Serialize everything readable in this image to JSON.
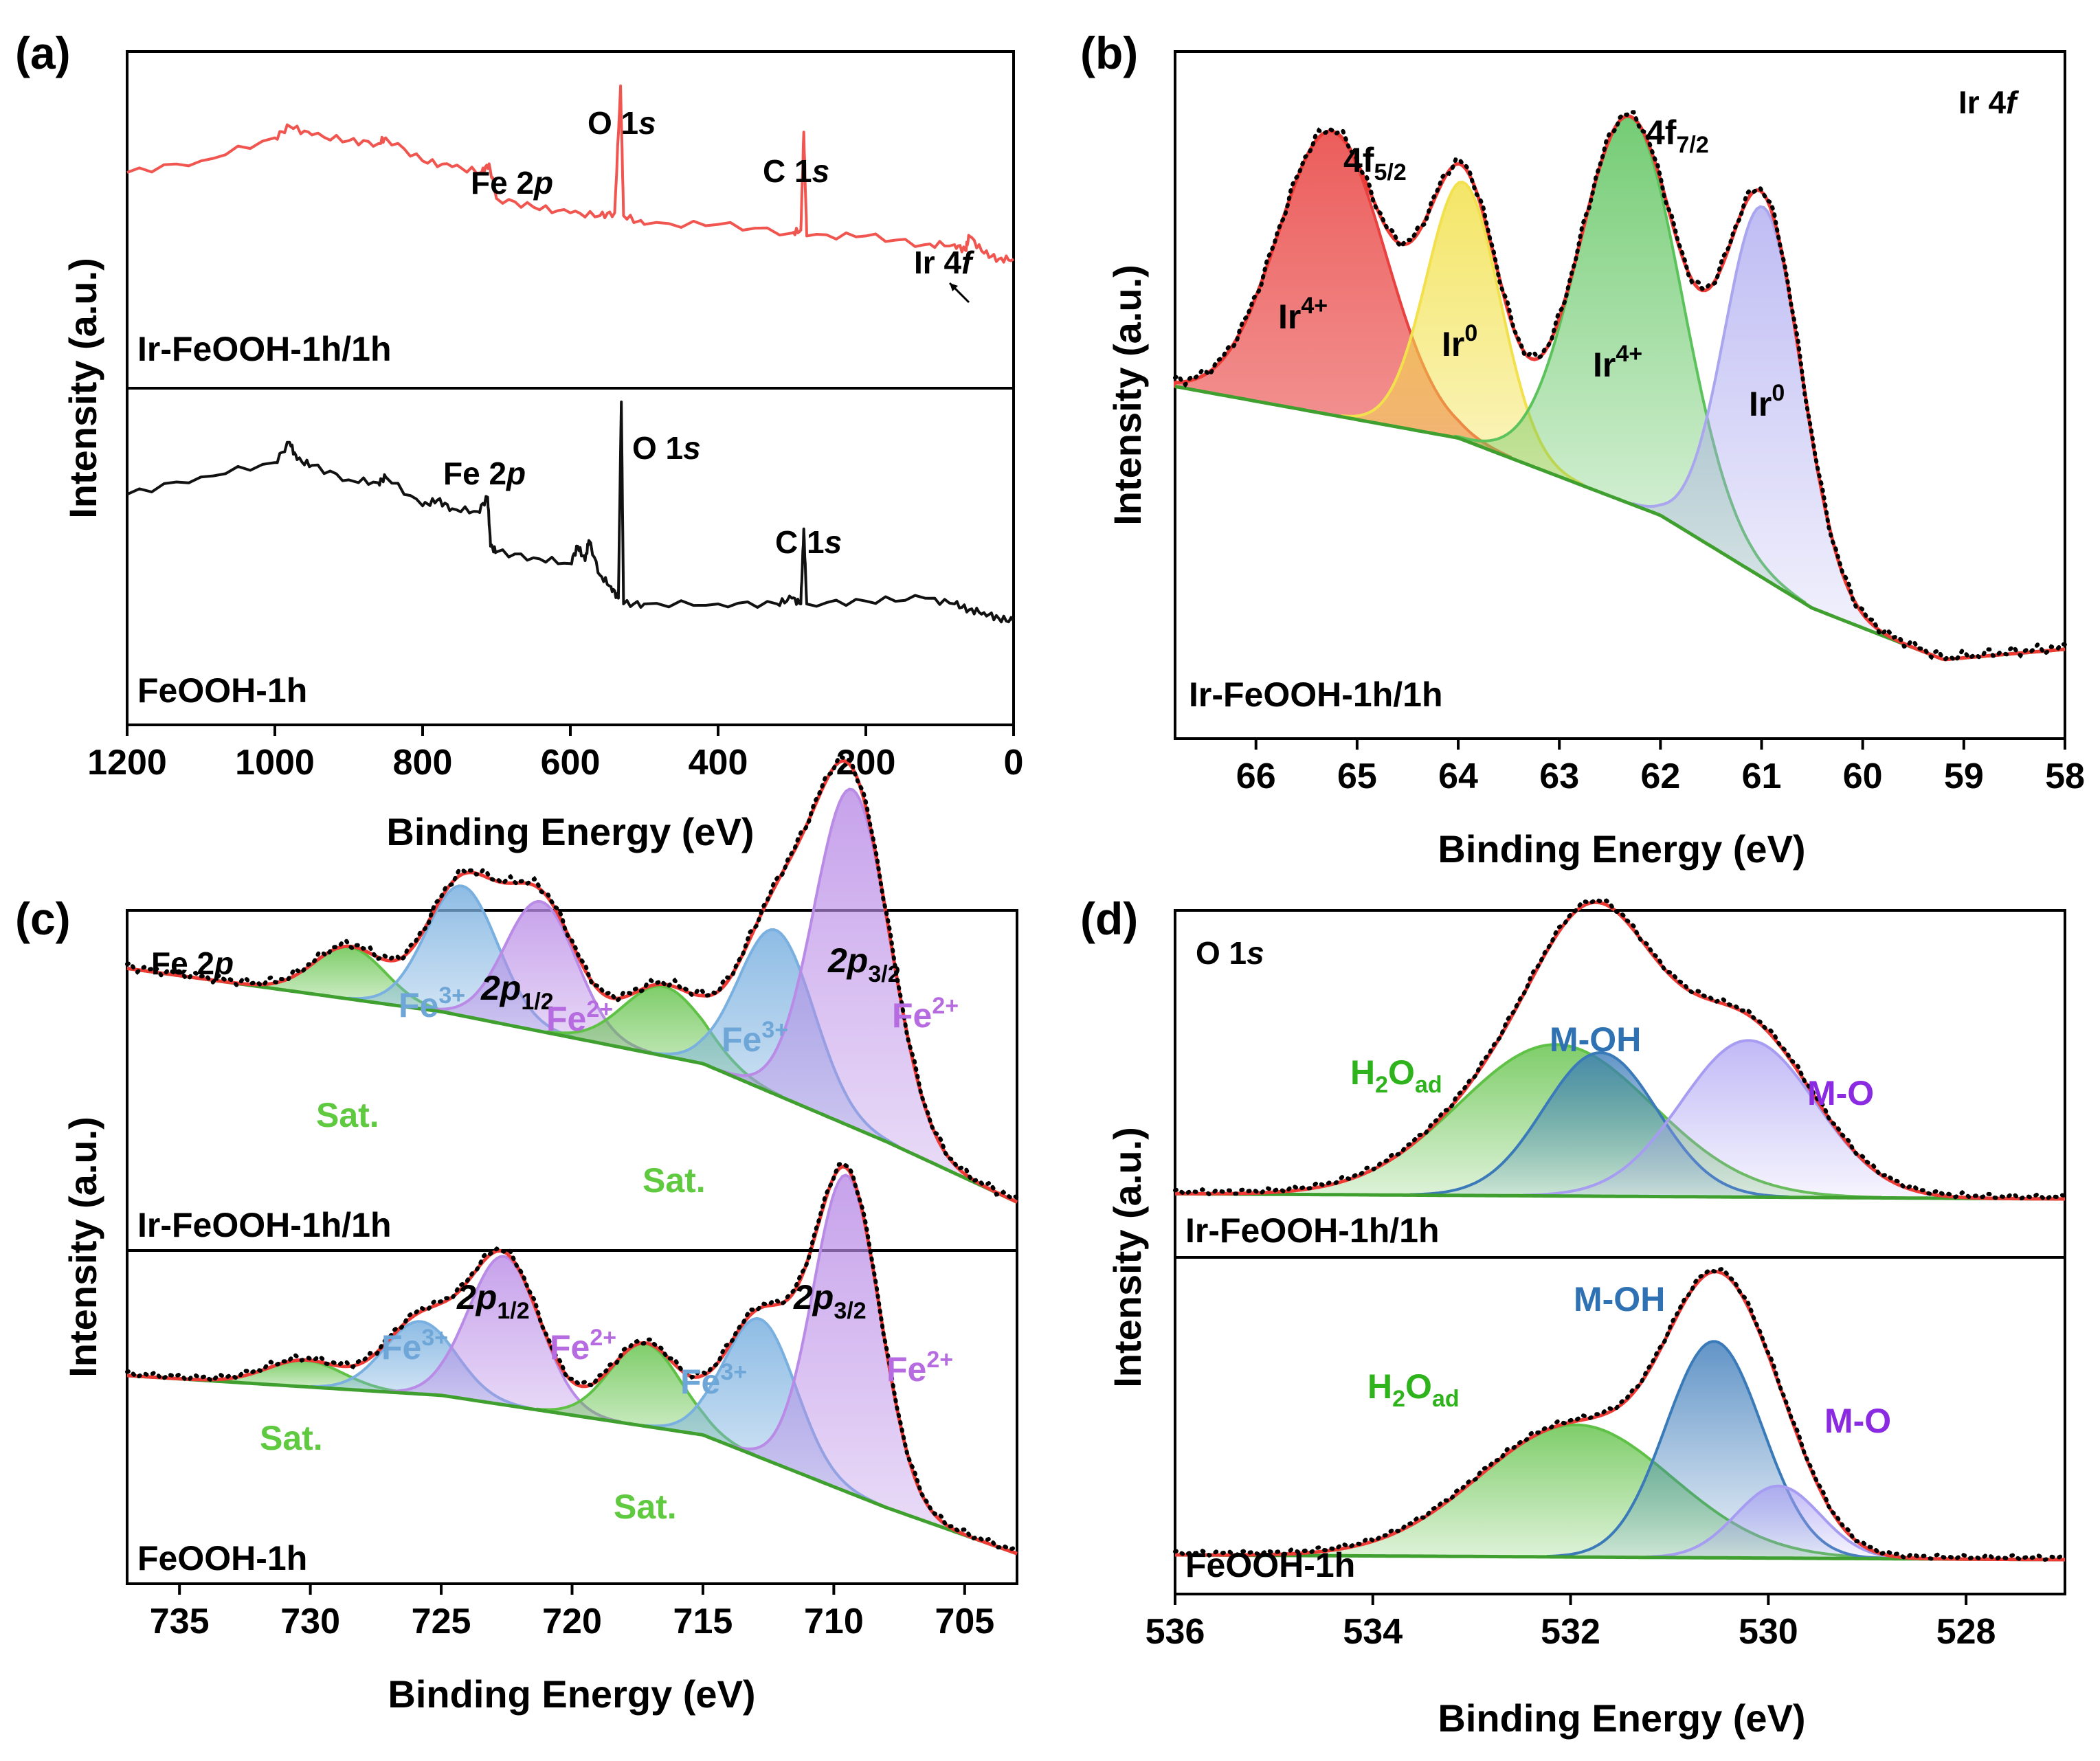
{
  "colors": {
    "ir4": "#e8413f",
    "ir0": "#f2e14c",
    "ir4b": "#5cc35c",
    "ir0b": "#a9a6ef",
    "fe3": "#7ab0e0",
    "fe2": "#b98be6",
    "sat": "#5fc145",
    "h2o": "#5fc145",
    "moh": "#3a7ab9",
    "mo": "#a69cf2",
    "envelope": "#ef3b36",
    "background": "#3f9f2f",
    "fe3_text": "#6fa6d8",
    "fe2_text": "#b66be0",
    "sat_text": "#5fc93f",
    "h2o_text": "#2fb31c",
    "moh_text": "#2f72b3",
    "mo_text": "#8a2be2",
    "survey_top": "#f0554f",
    "survey_bottom": "#111111"
  },
  "chart_data": [
    {
      "id": "a",
      "panel_label": "(a)",
      "type": "line",
      "xlabel": "Binding Energy (eV)",
      "ylabel": "Intensity (a.u.)",
      "xlim": [
        1200,
        0
      ],
      "xticks": [
        1200,
        1000,
        800,
        600,
        400,
        200,
        0
      ],
      "series": [
        {
          "name": "Ir-FeOOH-1h/1h",
          "label": "Ir-FeOOH-1h/1h",
          "color": "#f0554f",
          "x": [
            1200,
            1100,
            1000,
            980,
            950,
            900,
            860,
            850,
            800,
            760,
            720,
            710,
            700,
            650,
            600,
            560,
            540,
            532,
            528,
            500,
            400,
            300,
            288,
            284,
            280,
            200,
            120,
            80,
            65,
            60,
            40,
            20,
            0
          ],
          "y": [
            0.7,
            0.74,
            0.82,
            0.86,
            0.83,
            0.81,
            0.8,
            0.82,
            0.74,
            0.72,
            0.7,
            0.73,
            0.61,
            0.58,
            0.56,
            0.55,
            0.56,
            1.0,
            0.55,
            0.52,
            0.52,
            0.49,
            0.5,
            0.84,
            0.48,
            0.48,
            0.45,
            0.45,
            0.43,
            0.48,
            0.42,
            0.4,
            0.4
          ]
        },
        {
          "name": "FeOOH-1h",
          "label": "FeOOH-1h",
          "color": "#111111",
          "x": [
            1200,
            1100,
            1000,
            980,
            970,
            950,
            900,
            860,
            850,
            800,
            780,
            760,
            725,
            712,
            708,
            700,
            650,
            600,
            590,
            580,
            575,
            560,
            545,
            535,
            531,
            528,
            500,
            400,
            320,
            300,
            288,
            284,
            280,
            200,
            120,
            80,
            60,
            40,
            20,
            0
          ],
          "y": [
            0.68,
            0.74,
            0.79,
            0.86,
            0.8,
            0.78,
            0.73,
            0.72,
            0.74,
            0.64,
            0.66,
            0.63,
            0.62,
            0.67,
            0.5,
            0.48,
            0.46,
            0.44,
            0.5,
            0.45,
            0.52,
            0.4,
            0.36,
            0.32,
            1.0,
            0.3,
            0.3,
            0.3,
            0.3,
            0.32,
            0.3,
            0.56,
            0.3,
            0.31,
            0.32,
            0.3,
            0.28,
            0.27,
            0.25,
            0.24
          ]
        }
      ],
      "annotations_top": [
        {
          "text": "Fe 2",
          "italic": "p",
          "x": 735
        },
        {
          "text": "O 1",
          "italic": "s",
          "x": 540
        },
        {
          "text": "C 1",
          "italic": "s",
          "x": 290
        },
        {
          "text": "Ir 4",
          "italic": "f",
          "x": 70
        }
      ],
      "annotations_bottom": [
        {
          "text": "Fe 2",
          "italic": "p",
          "x": 765
        },
        {
          "text": "O 1",
          "italic": "s",
          "x": 510
        },
        {
          "text": "C 1",
          "italic": "s",
          "x": 276
        }
      ]
    },
    {
      "id": "b",
      "panel_label": "(b)",
      "type": "area",
      "title": "Ir 4f",
      "title_main": "Ir 4",
      "title_italic": "f",
      "xlabel": "Binding Energy (eV)",
      "ylabel": "Intensity (a.u.)",
      "xlim": [
        66.8,
        58
      ],
      "xticks": [
        66,
        65,
        64,
        63,
        62,
        61,
        60,
        59,
        58
      ],
      "sample": "Ir-FeOOH-1h/1h",
      "background": [
        [
          66.8,
          0.55
        ],
        [
          64,
          0.45
        ],
        [
          62,
          0.3
        ],
        [
          60.5,
          0.12
        ],
        [
          59.2,
          0.02
        ],
        [
          58,
          0.04
        ]
      ],
      "components": [
        {
          "name": "Ir4+ 4f5/2",
          "label": "Ir",
          "sup": "4+",
          "center": 65.25,
          "amplitude": 0.55,
          "fwhm": 1.25,
          "color": "#e8413f"
        },
        {
          "name": "Ir0 4f5/2",
          "label": "Ir",
          "sup": "0",
          "center": 63.95,
          "amplitude": 0.5,
          "fwhm": 0.85,
          "color": "#f2e14c"
        },
        {
          "name": "Ir4+ 4f7/2",
          "label": "Ir",
          "sup": "4+",
          "center": 62.3,
          "amplitude": 0.75,
          "fwhm": 1.2,
          "color": "#5cc35c"
        },
        {
          "name": "Ir0 4f7/2",
          "label": "Ir",
          "sup": "0",
          "center": 60.98,
          "amplitude": 0.72,
          "fwhm": 0.9,
          "color": "#a9a6ef"
        }
      ],
      "annotations": [
        {
          "text": "4f",
          "sub": "5/2"
        },
        {
          "text": "4f",
          "sub": "7/2"
        }
      ]
    },
    {
      "id": "c",
      "panel_label": "(c)",
      "type": "area",
      "title": "Fe 2p",
      "title_main": "Fe 2",
      "title_italic": "p",
      "xlabel": "Binding Energy (eV)",
      "ylabel": "Intensity (a.u.)",
      "xlim": [
        737,
        703
      ],
      "xticks": [
        735,
        730,
        725,
        720,
        715,
        710,
        705
      ],
      "subplots": [
        {
          "sample": "Ir-FeOOH-1h/1h",
          "background": [
            [
              737,
              0.62
            ],
            [
              725,
              0.52
            ],
            [
              715,
              0.4
            ],
            [
              708,
              0.22
            ],
            [
              703,
              0.08
            ]
          ],
          "components": [
            {
              "name": "Sat. 2p1/2",
              "center": 728.5,
              "amplitude": 0.12,
              "fwhm": 3.2,
              "color": "#5fc145"
            },
            {
              "name": "Fe3+ 2p1/2",
              "center": 724.2,
              "amplitude": 0.3,
              "fwhm": 3.2,
              "color": "#7ab0e0"
            },
            {
              "name": "Fe2+ 2p1/2",
              "center": 721.2,
              "amplitude": 0.3,
              "fwhm": 3.2,
              "color": "#b98be6"
            },
            {
              "name": "Sat. 2p3/2",
              "center": 716.5,
              "amplitude": 0.16,
              "fwhm": 3.6,
              "color": "#5fc145"
            },
            {
              "name": "Fe3+ 2p3/2",
              "center": 712.2,
              "amplitude": 0.38,
              "fwhm": 3.4,
              "color": "#7ab0e0"
            },
            {
              "name": "Fe2+ 2p3/2",
              "center": 709.3,
              "amplitude": 0.78,
              "fwhm": 3.4,
              "color": "#b98be6"
            }
          ]
        },
        {
          "sample": "FeOOH-1h",
          "background": [
            [
              737,
              0.6
            ],
            [
              725,
              0.54
            ],
            [
              715,
              0.42
            ],
            [
              708,
              0.2
            ],
            [
              703,
              0.06
            ]
          ],
          "components": [
            {
              "name": "Sat. 2p1/2",
              "center": 730.2,
              "amplitude": 0.08,
              "fwhm": 3.4,
              "color": "#5fc145"
            },
            {
              "name": "Fe3+ 2p1/2",
              "center": 725.8,
              "amplitude": 0.22,
              "fwhm": 3.2,
              "color": "#7ab0e0"
            },
            {
              "name": "Fe2+ 2p1/2",
              "center": 722.6,
              "amplitude": 0.45,
              "fwhm": 3.2,
              "color": "#b98be6"
            },
            {
              "name": "Sat. 2p3/2",
              "center": 717.2,
              "amplitude": 0.25,
              "fwhm": 3.2,
              "color": "#5fc145"
            },
            {
              "name": "Fe3+ 2p3/2",
              "center": 712.8,
              "amplitude": 0.42,
              "fwhm": 3.2,
              "color": "#7ab0e0"
            },
            {
              "name": "Fe2+ 2p3/2",
              "center": 709.5,
              "amplitude": 0.96,
              "fwhm": 3.0,
              "color": "#b98be6"
            }
          ]
        }
      ],
      "labels": {
        "fe3": "Fe",
        "fe3_sup": "3+",
        "fe2": "Fe",
        "fe2_sup": "2+",
        "sat": "Sat.",
        "p12": "2p",
        "p12_sub": "1/2",
        "p32": "2p",
        "p32_sub": "3/2"
      }
    },
    {
      "id": "d",
      "panel_label": "(d)",
      "type": "area",
      "title": "O 1s",
      "title_main": "O 1",
      "title_italic": "s",
      "xlabel": "Binding Energy (eV)",
      "ylabel": "Intensity (a.u.)",
      "xlim": [
        536,
        527
      ],
      "xticks": [
        536,
        534,
        532,
        530,
        528
      ],
      "subplots": [
        {
          "sample": "Ir-FeOOH-1h/1h",
          "background": [
            [
              536,
              0.02
            ],
            [
              527,
              0.0
            ]
          ],
          "components": [
            {
              "name": "H2Oad",
              "center": 532.15,
              "amplitude": 0.58,
              "fwhm": 2.3,
              "color": "#5fc145"
            },
            {
              "name": "M-OH",
              "center": 531.7,
              "amplitude": 0.55,
              "fwhm": 1.35,
              "color": "#3a7ab9"
            },
            {
              "name": "M-O",
              "center": 530.2,
              "amplitude": 0.6,
              "fwhm": 1.6,
              "color": "#a69cf2"
            }
          ]
        },
        {
          "sample": "FeOOH-1h",
          "background": [
            [
              536,
              0.02
            ],
            [
              527,
              0.0
            ]
          ],
          "components": [
            {
              "name": "H2Oad",
              "center": 531.95,
              "amplitude": 0.55,
              "fwhm": 2.3,
              "color": "#5fc145"
            },
            {
              "name": "M-OH",
              "center": 530.55,
              "amplitude": 0.9,
              "fwhm": 1.15,
              "color": "#3a7ab9"
            },
            {
              "name": "M-O",
              "center": 529.9,
              "amplitude": 0.3,
              "fwhm": 1.0,
              "color": "#a69cf2"
            }
          ]
        }
      ],
      "labels": {
        "h2o": "H",
        "h2o_sub1": "2",
        "h2o_mid": "O",
        "h2o_sub2": "ad",
        "moh": "M-OH",
        "mo": "M-O"
      }
    }
  ]
}
